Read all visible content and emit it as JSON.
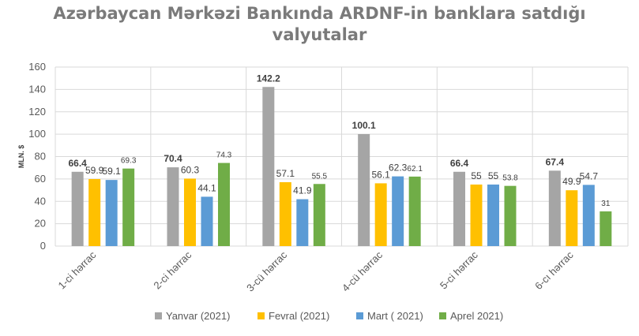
{
  "chart_data": {
    "type": "bar",
    "title_line1": "Azərbaycan Mərkəzi Bankında ARDNF-in banklara satdığı",
    "title_line2": "valyutalar",
    "ylabel": "MLN. $",
    "xlabel": "",
    "categories": [
      "1-ci hərrac",
      "2-ci hərrac",
      "3-cü hərrac",
      "4-cü hərrac",
      "5-ci hərrac",
      "6-cı hərrac"
    ],
    "ylim": [
      0,
      160
    ],
    "yticks": [
      0,
      20,
      40,
      60,
      80,
      100,
      120,
      140,
      160
    ],
    "grid": true,
    "legend_position": "bottom",
    "series": [
      {
        "name": "Yanvar (2021)",
        "color": "#a5a5a5",
        "values": [
          66.4,
          70.4,
          142.2,
          100.1,
          66.4,
          67.4
        ],
        "labels": [
          "66.4",
          "70.4",
          "142.2",
          "100.1",
          "66.4",
          "67.4"
        ]
      },
      {
        "name": "Fevral (2021)",
        "color": "#ffc000",
        "values": [
          59.9,
          60.3,
          57.1,
          56.1,
          55,
          49.9
        ],
        "labels": [
          "59.9",
          "60.3",
          "57.1",
          "56.1",
          "55",
          "49.9"
        ]
      },
      {
        "name": "Mart ( 2021)",
        "color": "#5b9bd5",
        "values": [
          59.1,
          44.1,
          41.9,
          62.3,
          55,
          54.7
        ],
        "labels": [
          "59.1",
          "44.1",
          "41.9",
          "62.3",
          "55",
          "54.7"
        ]
      },
      {
        "name": "Aprel 2021)",
        "color": "#70ad47",
        "values": [
          69.3,
          74.3,
          55.5,
          62.1,
          53.8,
          31
        ],
        "labels": [
          "69.3",
          "74.3",
          "55.5",
          "62.1",
          "53.8",
          "31"
        ]
      }
    ]
  }
}
